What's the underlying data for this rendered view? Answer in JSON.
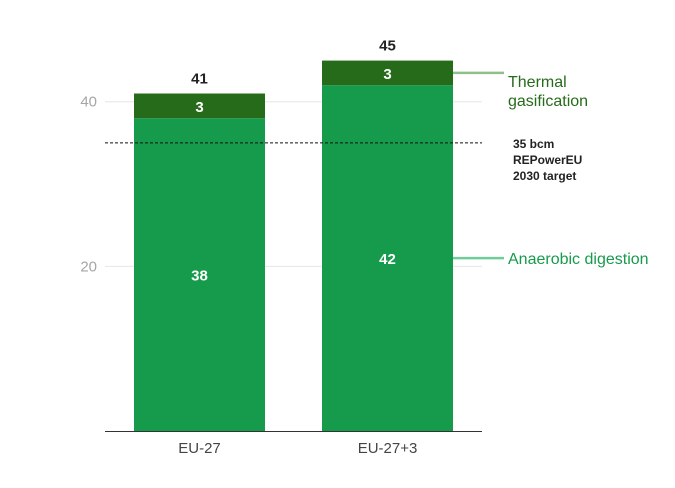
{
  "chart_data": {
    "type": "bar",
    "stacked": true,
    "categories": [
      "EU-27",
      "EU-27+3"
    ],
    "series": [
      {
        "name": "Anaerobic digestion",
        "values": [
          38,
          42
        ],
        "color": "#169b4c"
      },
      {
        "name": "Thermal gasification",
        "values": [
          3,
          3
        ],
        "color": "#266b1a"
      }
    ],
    "totals": [
      41,
      45
    ],
    "title": "",
    "xlabel": "",
    "ylabel": "",
    "ylim": [
      0,
      47.5
    ],
    "yticks": [
      20,
      40
    ],
    "grid": true,
    "reference_line": {
      "value": 35,
      "label_lines": [
        "35 bcm",
        "REPowerEU",
        "2030 target"
      ]
    },
    "series_label_lines": {
      "Thermal gasification": [
        "Thermal",
        "gasification"
      ],
      "Anaerobic digestion": [
        "Anaerobic digestion"
      ]
    },
    "colors": {
      "label_thermal": "#266b1a",
      "label_anaerobic": "#169b4c",
      "connector_thermal": "#8fbf8a",
      "connector_anaerobic": "#6fce98",
      "grid": "#e6e6e6",
      "tick_text": "#a6a6a6"
    }
  }
}
